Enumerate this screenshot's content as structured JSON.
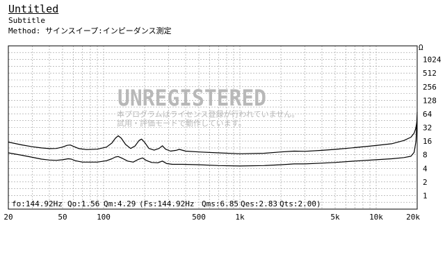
{
  "header": {
    "title": "Untitled",
    "subtitle": "Subtitle",
    "method_label": "Method:",
    "method_value": "サインスイープ:インピーダンス測定"
  },
  "watermark": {
    "main": "UNREGISTERED",
    "line1": "本プログラムはライセンス登録が行われていません。",
    "line2": "試用・評価モードで動作しています。"
  },
  "params": {
    "fo": "fo:144.92Hz",
    "qo": "Qo:1.56",
    "qm": "Qm:4.29",
    "fs": "(Fs:144.92Hz",
    "qms": "Qms:6.85",
    "qes": "Qes:2.83",
    "qts": "Qts:2.00)"
  },
  "colors": {
    "grid": "#9a9a9a",
    "trace": "#000000",
    "watermark": "#b8b8b8"
  },
  "chart_data": {
    "type": "line",
    "title": "Untitled",
    "subtitle": "Subtitle",
    "x_scale": "log",
    "y_scale": "log2",
    "xlim": [
      20,
      20000
    ],
    "ylim": [
      0.5,
      2048
    ],
    "y_unit": "Ω",
    "grid": true,
    "x_ticks": [
      {
        "value": 20,
        "label": "20"
      },
      {
        "value": 50,
        "label": "50"
      },
      {
        "value": 100,
        "label": "100"
      },
      {
        "value": 500,
        "label": "500"
      },
      {
        "value": 1000,
        "label": "1k"
      },
      {
        "value": 5000,
        "label": "5k"
      },
      {
        "value": 10000,
        "label": "10k"
      },
      {
        "value": 20000,
        "label": "20k"
      }
    ],
    "y_ticks": [
      {
        "value": 1,
        "label": "1"
      },
      {
        "value": 2,
        "label": "2"
      },
      {
        "value": 4,
        "label": "4"
      },
      {
        "value": 8,
        "label": "8"
      },
      {
        "value": 16,
        "label": "16"
      },
      {
        "value": 32,
        "label": "32"
      },
      {
        "value": 64,
        "label": "64"
      },
      {
        "value": 128,
        "label": "128"
      },
      {
        "value": 256,
        "label": "256"
      },
      {
        "value": 512,
        "label": "512"
      },
      {
        "value": 1024,
        "label": "1024"
      }
    ],
    "series": [
      {
        "points": [
          [
            20,
            15.2
          ],
          [
            25,
            13.2
          ],
          [
            30,
            12.0
          ],
          [
            35,
            11.3
          ],
          [
            40,
            10.9
          ],
          [
            45,
            11.0
          ],
          [
            50,
            11.8
          ],
          [
            54,
            12.9
          ],
          [
            57,
            13.1
          ],
          [
            61,
            12.0
          ],
          [
            66,
            10.9
          ],
          [
            75,
            10.4
          ],
          [
            90,
            10.6
          ],
          [
            105,
            11.8
          ],
          [
            115,
            14.5
          ],
          [
            122,
            18.5
          ],
          [
            128,
            21.0
          ],
          [
            135,
            18.5
          ],
          [
            145,
            13.5
          ],
          [
            158,
            11.0
          ],
          [
            170,
            12.5
          ],
          [
            182,
            16.5
          ],
          [
            190,
            17.7
          ],
          [
            200,
            15.0
          ],
          [
            215,
            11.0
          ],
          [
            235,
            10.1
          ],
          [
            255,
            11.0
          ],
          [
            270,
            12.6
          ],
          [
            285,
            10.6
          ],
          [
            310,
            9.6
          ],
          [
            340,
            10.0
          ],
          [
            360,
            10.5
          ],
          [
            400,
            9.6
          ],
          [
            500,
            9.2
          ],
          [
            700,
            8.8
          ],
          [
            1000,
            8.4
          ],
          [
            1500,
            8.6
          ],
          [
            2000,
            9.2
          ],
          [
            2500,
            9.6
          ],
          [
            3000,
            9.5
          ],
          [
            4000,
            10.0
          ],
          [
            5000,
            10.5
          ],
          [
            7000,
            11.5
          ],
          [
            10000,
            12.8
          ],
          [
            13000,
            14.0
          ],
          [
            16000,
            16.5
          ],
          [
            18000,
            19.5
          ],
          [
            19000,
            24.0
          ],
          [
            19500,
            30.0
          ],
          [
            20000,
            46.0
          ]
        ]
      },
      {
        "points": [
          [
            20,
            8.8
          ],
          [
            25,
            7.8
          ],
          [
            30,
            7.0
          ],
          [
            35,
            6.4
          ],
          [
            40,
            6.1
          ],
          [
            45,
            6.0
          ],
          [
            50,
            6.2
          ],
          [
            55,
            6.5
          ],
          [
            58,
            6.4
          ],
          [
            62,
            5.9
          ],
          [
            70,
            5.5
          ],
          [
            90,
            5.5
          ],
          [
            105,
            5.9
          ],
          [
            115,
            6.5
          ],
          [
            122,
            7.1
          ],
          [
            128,
            7.3
          ],
          [
            138,
            6.6
          ],
          [
            150,
            5.8
          ],
          [
            165,
            5.5
          ],
          [
            180,
            6.3
          ],
          [
            193,
            6.8
          ],
          [
            205,
            6.0
          ],
          [
            225,
            5.4
          ],
          [
            250,
            5.3
          ],
          [
            270,
            5.8
          ],
          [
            290,
            5.1
          ],
          [
            320,
            4.9
          ],
          [
            380,
            4.9
          ],
          [
            500,
            4.8
          ],
          [
            700,
            4.6
          ],
          [
            1000,
            4.5
          ],
          [
            1500,
            4.6
          ],
          [
            2000,
            4.8
          ],
          [
            2500,
            5.0
          ],
          [
            3000,
            5.0
          ],
          [
            4000,
            5.2
          ],
          [
            5000,
            5.4
          ],
          [
            7000,
            5.8
          ],
          [
            10000,
            6.2
          ],
          [
            13000,
            6.5
          ],
          [
            16000,
            6.9
          ],
          [
            18000,
            7.4
          ],
          [
            19000,
            9.0
          ],
          [
            19600,
            16.0
          ],
          [
            20000,
            70.0
          ]
        ]
      }
    ]
  }
}
